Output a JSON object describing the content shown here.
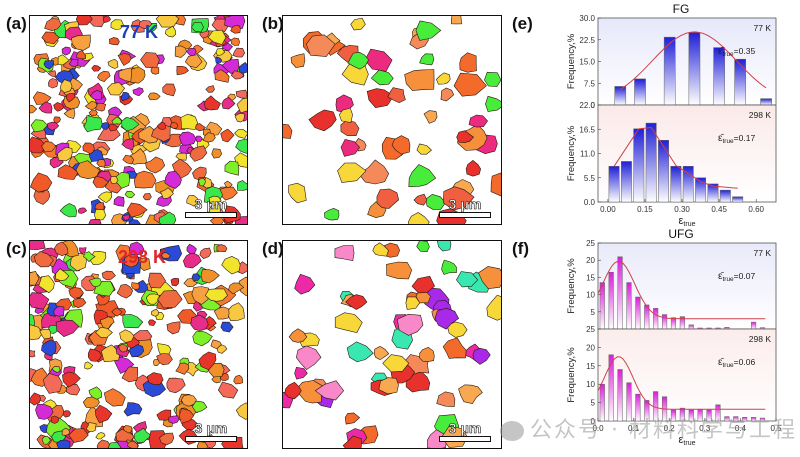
{
  "figure": {
    "panels": {
      "a": {
        "label": "(a)",
        "temperature": "77 K",
        "temp_color": "#1a3fb8",
        "scale_bar": "3 μm",
        "map_type": "EBSD IPF map, FG, 77 K"
      },
      "b": {
        "label": "(b)",
        "scale_bar": "3 μm",
        "map_type": "EBSD IPF map, FG, 77 K (sparse grains)"
      },
      "c": {
        "label": "(c)",
        "temperature": "298 K",
        "temp_color": "#e0262a",
        "scale_bar": "3 μm",
        "map_type": "EBSD IPF map, FG, 298 K"
      },
      "d": {
        "label": "(d)",
        "scale_bar": "3 μm",
        "map_type": "EBSD IPF map, 298 K (sparse grains)"
      },
      "e": {
        "label": "(e)"
      },
      "f": {
        "label": "(f)"
      }
    },
    "watermark": "公众号 · 材料科学与工程"
  },
  "chart_data": [
    {
      "id": "e-top",
      "type": "bar",
      "title": "FG",
      "annotation_temp": "77 K",
      "annotation_mean": "=0.35",
      "mean_symbol": "ε̄",
      "mean_subscript": "true",
      "ylabel": "Frequency,%",
      "xlabel": "",
      "ylim": [
        0,
        30
      ],
      "yticks": [
        "30.0",
        "22.5",
        "15.0",
        "7.5",
        "0"
      ],
      "ytick_values": [
        30,
        22.5,
        15,
        7.5,
        0
      ],
      "xlim": [
        -0.04,
        0.68
      ],
      "bar_width": 0.045,
      "x": [
        0.05,
        0.13,
        0.25,
        0.35,
        0.45,
        0.535,
        0.64
      ],
      "values": [
        6.4,
        9.0,
        23.4,
        25.0,
        19.8,
        15.8,
        2.2
      ],
      "fit": {
        "type": "gaussian",
        "mean": 0.35,
        "sigma": 0.17,
        "amp": 25.2,
        "range": [
          0.05,
          0.64
        ]
      },
      "bar_color": "#1f1fd6",
      "background": "#e6e8fa"
    },
    {
      "id": "e-bottom",
      "type": "bar",
      "title": "",
      "annotation_temp": "298 K",
      "annotation_mean": "=0.17",
      "mean_symbol": "ε̄",
      "mean_subscript": "true",
      "ylabel": "Frequency,%",
      "xlabel": "ε",
      "xlabel_sub": "true",
      "ylim": [
        0,
        22
      ],
      "yticks": [
        "22.0",
        "16.5",
        "11.0",
        "5.5",
        "0.0"
      ],
      "ytick_values": [
        22,
        16.5,
        11,
        5.5,
        0
      ],
      "xticks": [
        "0.00",
        "0.15",
        "0.30",
        "0.45",
        "0.60"
      ],
      "xtick_values": [
        0.0,
        0.15,
        0.3,
        0.45,
        0.6
      ],
      "xlim": [
        -0.04,
        0.68
      ],
      "bar_width": 0.042,
      "x": [
        0.025,
        0.075,
        0.125,
        0.175,
        0.225,
        0.275,
        0.325,
        0.375,
        0.425,
        0.475,
        0.525
      ],
      "values": [
        8.1,
        9.2,
        16.6,
        17.9,
        14.0,
        8.1,
        8.1,
        5.5,
        4.1,
        2.7,
        1.2
      ],
      "fit": {
        "type": "polyline",
        "x": [
          0.025,
          0.125,
          0.175,
          0.275,
          0.325,
          0.375,
          0.425,
          0.525
        ],
        "y": [
          8.1,
          16.6,
          16.9,
          8.3,
          6.5,
          4.6,
          3.6,
          3.1
        ]
      },
      "bar_color": "#1f1fd6",
      "background": "#fbe9e9"
    },
    {
      "id": "f-top",
      "type": "bar",
      "title": "UFG",
      "annotation_temp": "77 K",
      "annotation_mean": "=0.07",
      "mean_symbol": "ε̄",
      "mean_subscript": "true",
      "ylabel": "Frequency,%",
      "xlabel": "",
      "ylim": [
        0,
        25
      ],
      "yticks": [
        "25",
        "20",
        "15",
        "10",
        "5"
      ],
      "ytick_values": [
        25,
        20,
        15,
        10,
        5
      ],
      "xlim": [
        0.0,
        0.5
      ],
      "bar_width": 0.013,
      "x": [
        0.012,
        0.037,
        0.062,
        0.087,
        0.112,
        0.137,
        0.162,
        0.187,
        0.212,
        0.237,
        0.262,
        0.287,
        0.312,
        0.337,
        0.362,
        0.437,
        0.462
      ],
      "values": [
        13.5,
        16.5,
        21.0,
        13.5,
        9.3,
        7.0,
        6.0,
        4.2,
        3.3,
        3.6,
        1.2,
        0.3,
        0.3,
        0.3,
        0.5,
        2.0,
        0.4
      ],
      "fit": {
        "type": "gaussian-tail",
        "mean": 0.058,
        "sigma": 0.045,
        "amp": 16.7,
        "baseline": 3.0,
        "range": [
          0.0,
          0.47
        ]
      },
      "bar_color": "#d81ed8",
      "background": "#e9eafa"
    },
    {
      "id": "f-bottom",
      "type": "bar",
      "title": "",
      "annotation_temp": "298 K",
      "annotation_mean": "=0.06",
      "mean_symbol": "ε̄",
      "mean_subscript": "true",
      "ylabel": "Frequency,%",
      "xlabel": "ε",
      "xlabel_sub": "true",
      "ylim": [
        0,
        25
      ],
      "yticks": [
        "25",
        "20",
        "15",
        "10",
        "5",
        "0"
      ],
      "ytick_values": [
        25,
        20,
        15,
        10,
        5,
        0
      ],
      "xticks": [
        "0.0",
        "0.1",
        "0.2",
        "0.3",
        "0.4",
        "0.5"
      ],
      "xtick_values": [
        0.0,
        0.1,
        0.2,
        0.3,
        0.4,
        0.5
      ],
      "xlim": [
        0.0,
        0.5
      ],
      "bar_width": 0.013,
      "x": [
        0.012,
        0.037,
        0.062,
        0.087,
        0.112,
        0.137,
        0.162,
        0.187,
        0.212,
        0.237,
        0.262,
        0.287,
        0.312,
        0.337,
        0.362,
        0.387,
        0.412,
        0.437,
        0.462
      ],
      "values": [
        10.0,
        18.0,
        14.0,
        10.4,
        7.3,
        5.6,
        8.0,
        6.6,
        3.0,
        3.5,
        3.0,
        3.2,
        3.0,
        4.4,
        1.2,
        1.2,
        1.0,
        1.0,
        0.8
      ],
      "fit": {
        "type": "gaussian-tail",
        "mean": 0.058,
        "sigma": 0.04,
        "amp": 14.3,
        "baseline": 3.2,
        "range": [
          0.0,
          0.47
        ]
      },
      "bar_color": "#d81ed8",
      "background": "#fcecec"
    }
  ]
}
